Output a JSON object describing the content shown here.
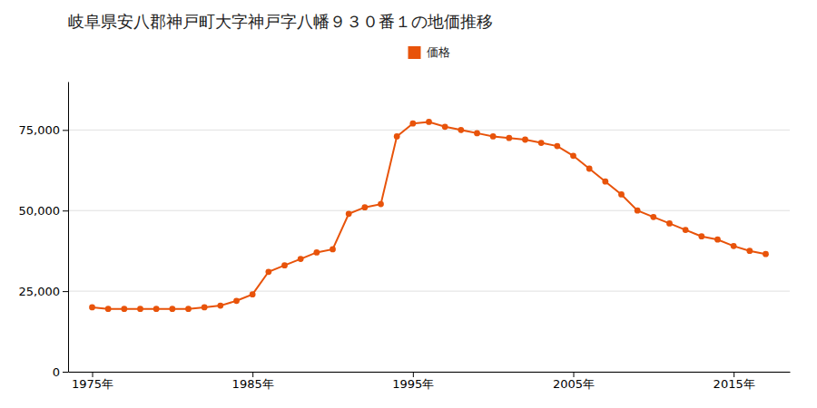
{
  "chart_data": {
    "type": "line",
    "title": "岐阜県安八郡神戸町大字神戸字八幡９３０番１の地価推移",
    "x": [
      1975,
      1976,
      1977,
      1978,
      1979,
      1980,
      1981,
      1982,
      1983,
      1984,
      1985,
      1986,
      1987,
      1988,
      1989,
      1990,
      1991,
      1992,
      1993,
      1994,
      1995,
      1996,
      1997,
      1998,
      1999,
      2000,
      2001,
      2002,
      2003,
      2004,
      2005,
      2006,
      2007,
      2008,
      2009,
      2010,
      2011,
      2012,
      2013,
      2014,
      2015,
      2016,
      2017
    ],
    "series": [
      {
        "name": "価格",
        "color": "#E8530A",
        "marker": "circle",
        "values": [
          20000,
          19500,
          19500,
          19500,
          19500,
          19500,
          19500,
          20000,
          20500,
          22000,
          24000,
          31000,
          33000,
          35000,
          37000,
          38000,
          49000,
          51000,
          52000,
          73000,
          77000,
          77500,
          76000,
          75000,
          74000,
          73000,
          72500,
          72000,
          71000,
          70000,
          67000,
          63000,
          59000,
          55000,
          50000,
          48000,
          46000,
          44000,
          42000,
          41000,
          39000,
          37500,
          36500
        ]
      }
    ],
    "xlim": [
      1973.5,
      2018.5
    ],
    "xticks": [
      {
        "value": 1975,
        "label": "1975年"
      },
      {
        "value": 1985,
        "label": "1985年"
      },
      {
        "value": 1995,
        "label": "1995年"
      },
      {
        "value": 2005,
        "label": "2005年"
      },
      {
        "value": 2015,
        "label": "2015年"
      }
    ],
    "ylim": [
      0,
      90000
    ],
    "yticks": [
      0,
      {
        "value": 25000,
        "label": "25,000"
      },
      {
        "value": 50000,
        "label": "50,000"
      },
      {
        "value": 75000,
        "label": "75,000"
      }
    ],
    "grid": "y",
    "legend": "top"
  }
}
